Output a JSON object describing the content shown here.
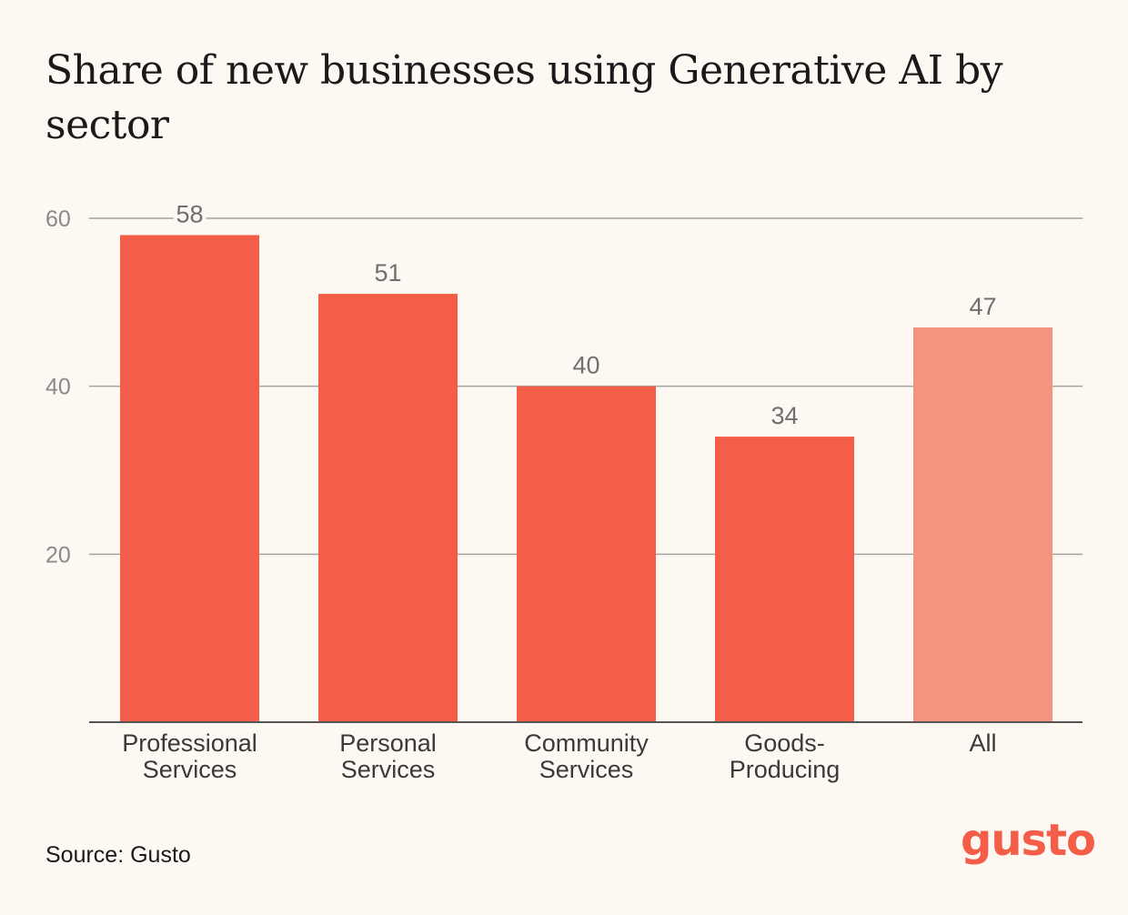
{
  "title": "Share of new businesses using Generative AI by sector",
  "source": "Source: Gusto",
  "logo": "gusto",
  "colors": {
    "background": "#fdf8f1",
    "bar": "#f45d48",
    "bar_highlight": "#f49380",
    "grid": "#a3a3a3",
    "axis": "#555555",
    "text": "#1a1a1a",
    "muted_text": "#6f6f6f"
  },
  "chart_data": {
    "type": "bar",
    "title": "Share of new businesses using Generative AI by sector",
    "xlabel": "",
    "ylabel": "",
    "ylim": [
      0,
      60
    ],
    "yticks": [
      20,
      40,
      60
    ],
    "grid": true,
    "categories": [
      [
        "Professional",
        "Services"
      ],
      [
        "Personal",
        "Services"
      ],
      [
        "Community",
        "Services"
      ],
      [
        "Goods-",
        "Producing"
      ],
      [
        "All"
      ]
    ],
    "values": [
      58,
      51,
      40,
      34,
      47
    ],
    "highlight": [
      false,
      false,
      false,
      false,
      true
    ]
  }
}
